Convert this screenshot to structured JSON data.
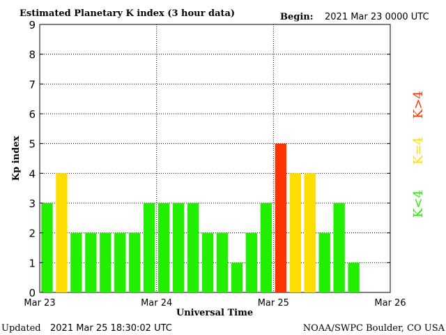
{
  "header": {
    "title": "Estimated Planetary K index (3 hour data)",
    "begin_label": "Begin:",
    "begin_value": "2021 Mar 23 0000 UTC"
  },
  "footer": {
    "updated_label": "Updated",
    "updated_value": "2021 Mar 25 18:30:02 UTC",
    "source": "NOAA/SWPC Boulder, CO USA"
  },
  "legend": {
    "items": [
      {
        "label": "K>4",
        "color": "#ff3300"
      },
      {
        "label": "K=4",
        "color": "#ffdd00"
      },
      {
        "label": "K<4",
        "color": "#22ee00"
      }
    ]
  },
  "chart_data": {
    "type": "bar",
    "title": "Estimated Planetary K index (3 hour data)",
    "xlabel": "Universal Time",
    "ylabel": "Kp index",
    "ylim": [
      0,
      9
    ],
    "yticks": [
      0,
      1,
      2,
      3,
      4,
      5,
      6,
      7,
      8,
      9
    ],
    "xtick_labels": [
      "Mar 23",
      "Mar 24",
      "Mar 25",
      "Mar 26"
    ],
    "bars_per_day": 8,
    "grid": true,
    "values": [
      3,
      4,
      2,
      2,
      2,
      2,
      2,
      3,
      3,
      3,
      3,
      2,
      2,
      1,
      2,
      3,
      5,
      4,
      4,
      2,
      3,
      1
    ],
    "colors": {
      "low": "#22ee00",
      "equal": "#ffdd00",
      "high": "#ff3300"
    },
    "legend_position": "right"
  }
}
